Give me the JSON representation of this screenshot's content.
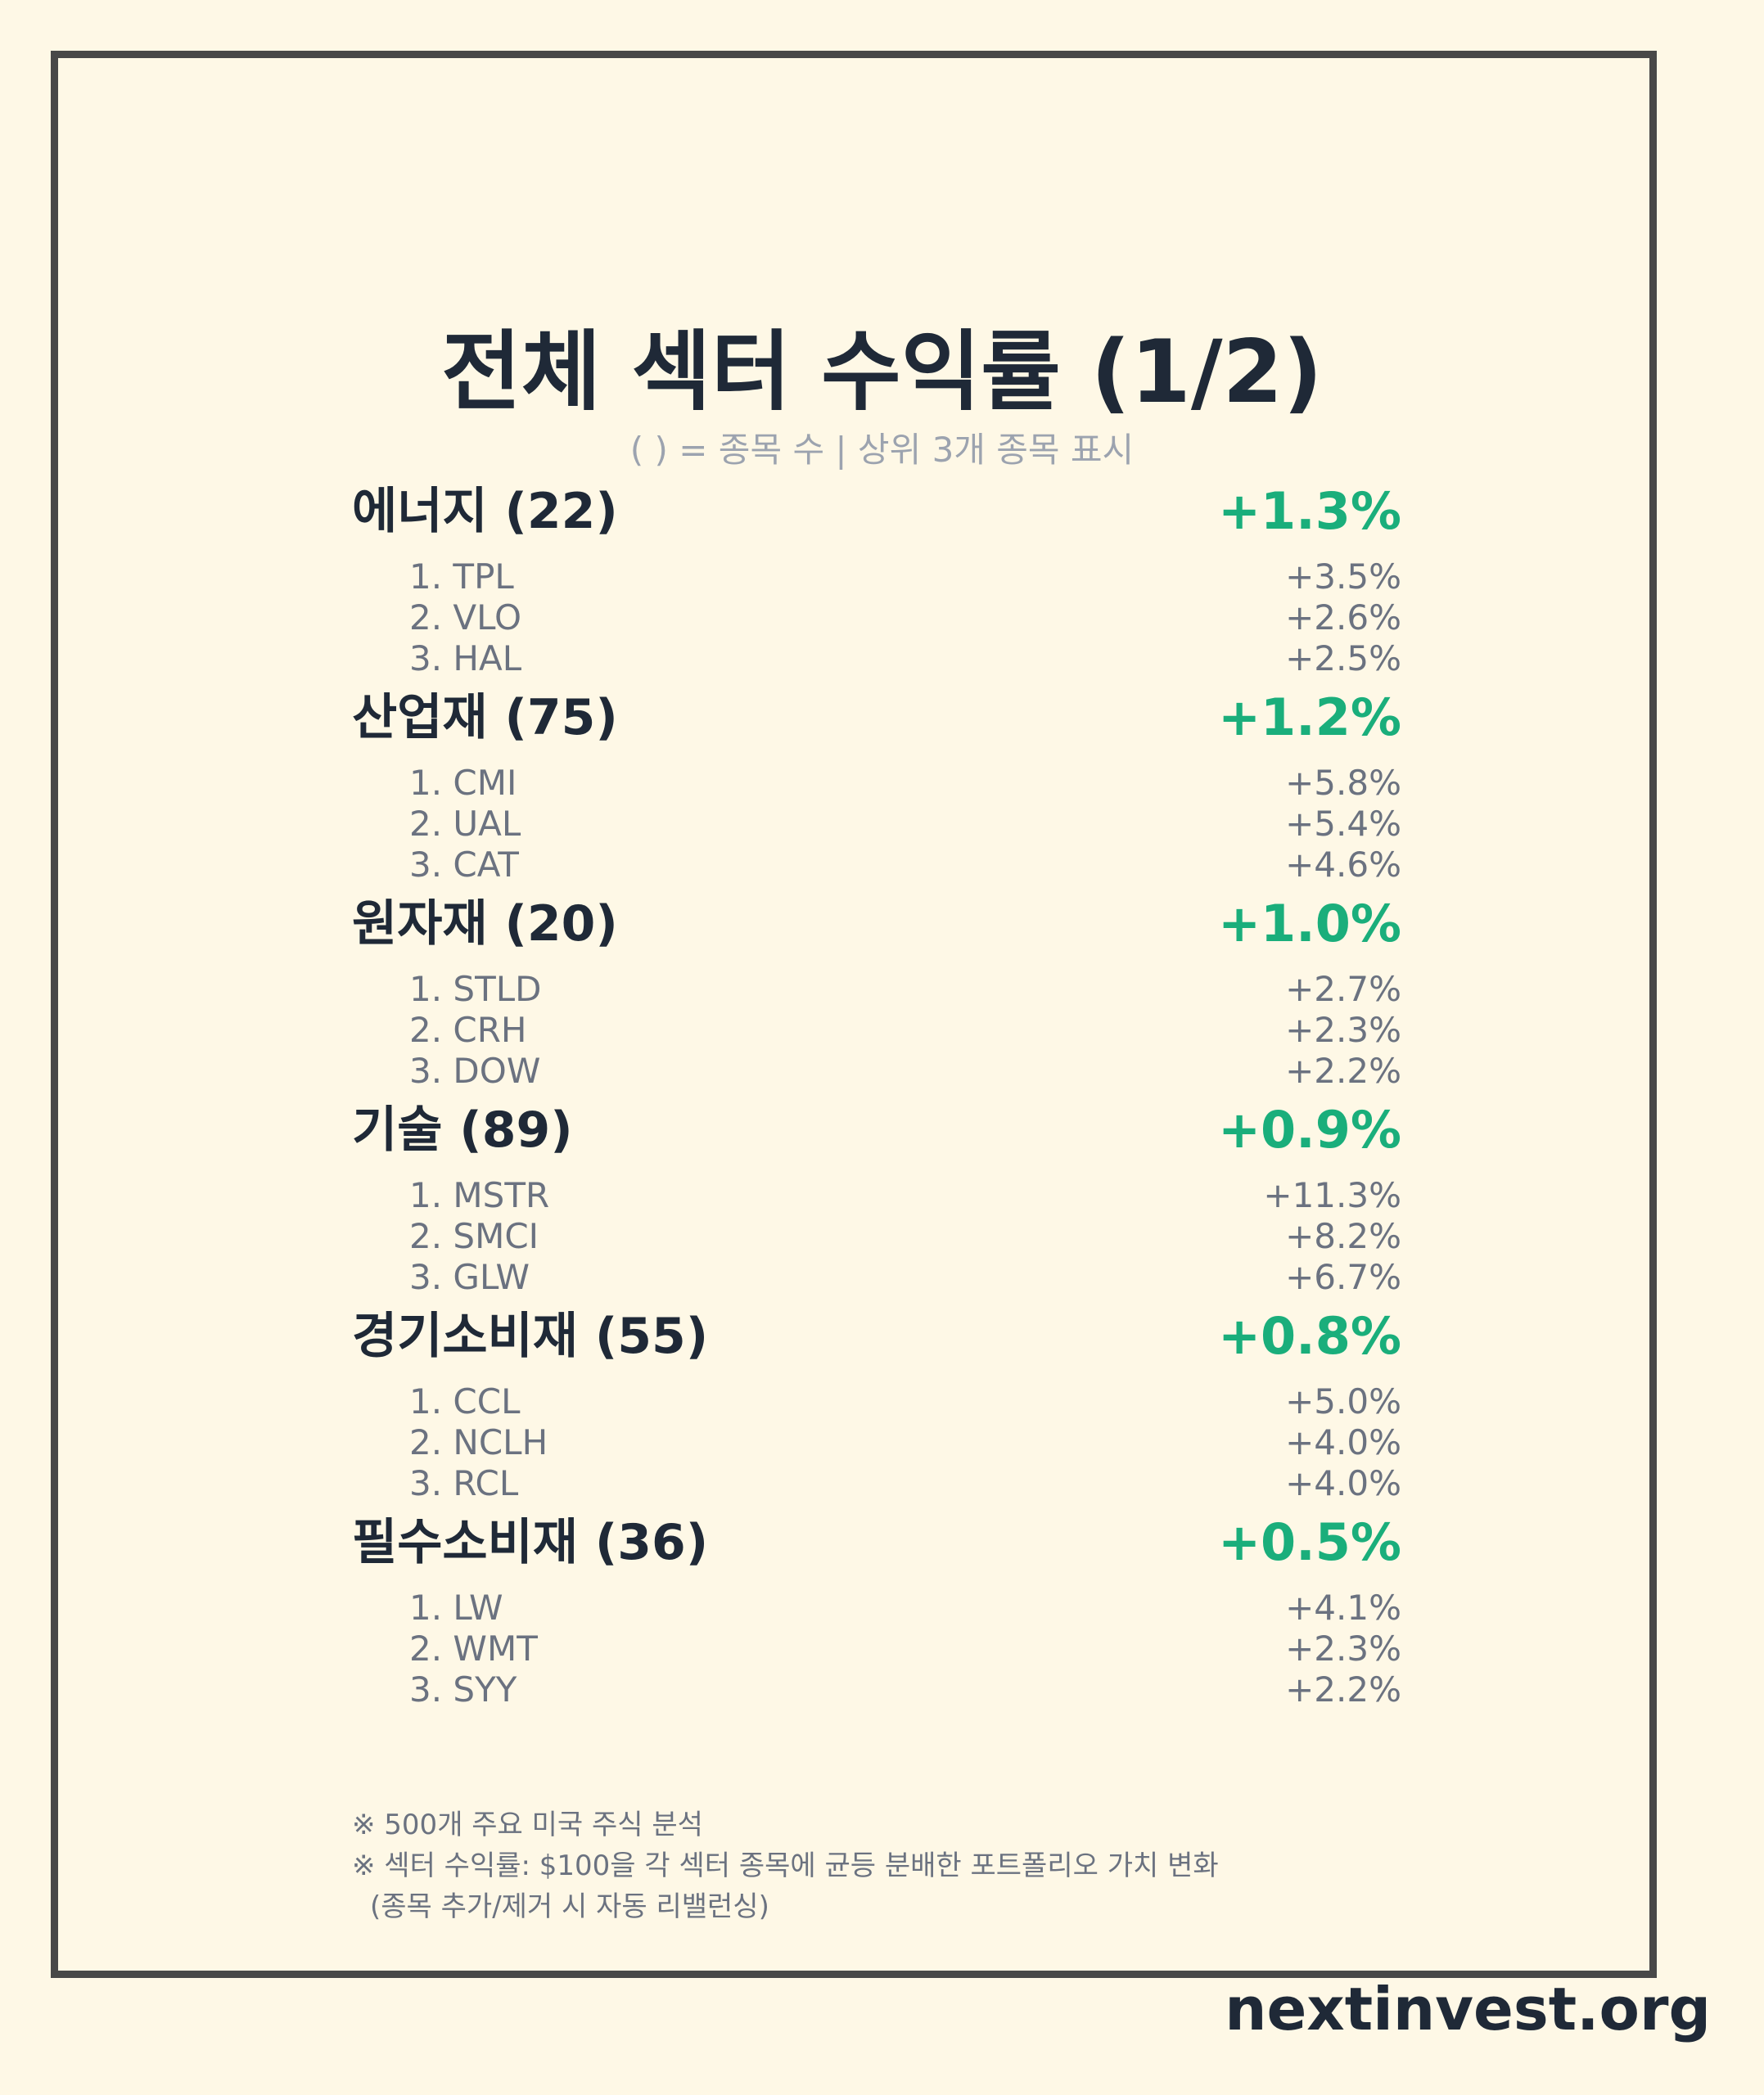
{
  "title": "전체 섹터 수익률 (1/2)",
  "subtitle": "( ) = 종목 수 | 상위 3개 종목 표시",
  "colors": {
    "background": "#FEF8E6",
    "frame": "#484848",
    "positive": "#1AAE7B",
    "text_dark": "#1F2937",
    "text_muted": "#6B7280"
  },
  "sectors": [
    {
      "name": "에너지 (22)",
      "return": "+1.3%",
      "stocks": [
        {
          "name": "1. TPL",
          "return": "+3.5%"
        },
        {
          "name": "2. VLO",
          "return": "+2.6%"
        },
        {
          "name": "3. HAL",
          "return": "+2.5%"
        }
      ]
    },
    {
      "name": "산업재 (75)",
      "return": "+1.2%",
      "stocks": [
        {
          "name": "1. CMI",
          "return": "+5.8%"
        },
        {
          "name": "2. UAL",
          "return": "+5.4%"
        },
        {
          "name": "3. CAT",
          "return": "+4.6%"
        }
      ]
    },
    {
      "name": "원자재 (20)",
      "return": "+1.0%",
      "stocks": [
        {
          "name": "1. STLD",
          "return": "+2.7%"
        },
        {
          "name": "2. CRH",
          "return": "+2.3%"
        },
        {
          "name": "3. DOW",
          "return": "+2.2%"
        }
      ]
    },
    {
      "name": "기술 (89)",
      "return": "+0.9%",
      "stocks": [
        {
          "name": "1. MSTR",
          "return": "+11.3%"
        },
        {
          "name": "2. SMCI",
          "return": "+8.2%"
        },
        {
          "name": "3. GLW",
          "return": "+6.7%"
        }
      ]
    },
    {
      "name": "경기소비재 (55)",
      "return": "+0.8%",
      "stocks": [
        {
          "name": "1. CCL",
          "return": "+5.0%"
        },
        {
          "name": "2. NCLH",
          "return": "+4.0%"
        },
        {
          "name": "3. RCL",
          "return": "+4.0%"
        }
      ]
    },
    {
      "name": "필수소비재 (36)",
      "return": "+0.5%",
      "stocks": [
        {
          "name": "1. LW",
          "return": "+4.1%"
        },
        {
          "name": "2. WMT",
          "return": "+2.3%"
        },
        {
          "name": "3. SYY",
          "return": "+2.2%"
        }
      ]
    }
  ],
  "notes": [
    "※ 500개 주요 미국 주식 분석",
    "※ 섹터 수익률: $100을 각 섹터 종목에 균등 분배한 포트폴리오 가치 변화",
    "(종목 추가/제거 시 자동 리밸런싱)"
  ],
  "brand": "nextinvest.org"
}
